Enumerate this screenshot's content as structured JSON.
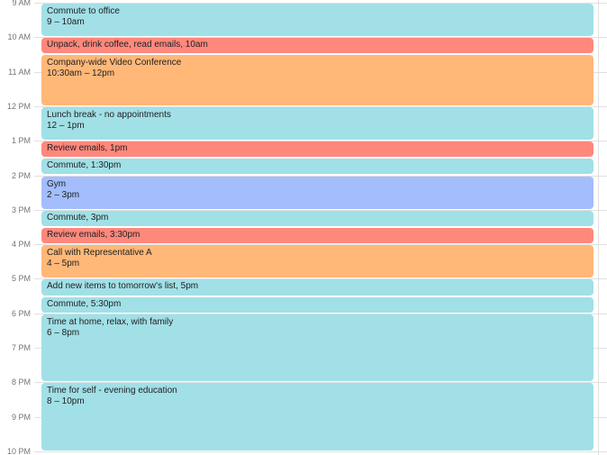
{
  "hours": [
    "9 AM",
    "10 AM",
    "11 AM",
    "12 PM",
    "1 PM",
    "2 PM",
    "3 PM",
    "4 PM",
    "5 PM",
    "6 PM",
    "7 PM",
    "8 PM",
    "9 PM",
    "10 PM"
  ],
  "colors": {
    "teal": "#a1e0e6",
    "red": "#ff887c",
    "orange": "#ffb878",
    "blue": "#a4bdfc"
  },
  "events": [
    {
      "title": "Commute to office",
      "time": "9 – 10am",
      "start": 9.0,
      "end": 10.0,
      "color": "#a1e0e6"
    },
    {
      "title": "Unpack, drink coffee, read emails",
      "time": "10am",
      "start": 10.0,
      "end": 10.5,
      "color": "#ff887c"
    },
    {
      "title": "Company-wide Video Conference",
      "time": "10:30am – 12pm",
      "start": 10.5,
      "end": 12.0,
      "color": "#ffb878"
    },
    {
      "title": "Lunch break - no appointments",
      "time": "12 – 1pm",
      "start": 12.0,
      "end": 13.0,
      "color": "#a1e0e6"
    },
    {
      "title": "Review emails",
      "time": "1pm",
      "start": 13.0,
      "end": 13.5,
      "color": "#ff887c"
    },
    {
      "title": "Commute",
      "time": "1:30pm",
      "start": 13.5,
      "end": 14.0,
      "color": "#a1e0e6"
    },
    {
      "title": "Gym",
      "time": "2 – 3pm",
      "start": 14.0,
      "end": 15.0,
      "color": "#a4bdfc"
    },
    {
      "title": "Commute",
      "time": "3pm",
      "start": 15.0,
      "end": 15.5,
      "color": "#a1e0e6"
    },
    {
      "title": "Review emails",
      "time": "3:30pm",
      "start": 15.5,
      "end": 16.0,
      "color": "#ff887c"
    },
    {
      "title": "Call with Representative A",
      "time": "4 – 5pm",
      "start": 16.0,
      "end": 17.0,
      "color": "#ffb878"
    },
    {
      "title": "Add new items to tomorrow's list",
      "time": "5pm",
      "start": 17.0,
      "end": 17.5,
      "color": "#a1e0e6"
    },
    {
      "title": "Commute",
      "time": "5:30pm",
      "start": 17.5,
      "end": 18.0,
      "color": "#a1e0e6"
    },
    {
      "title": "Time at home, relax, with family",
      "time": "6 – 8pm",
      "start": 18.0,
      "end": 20.0,
      "color": "#a1e0e6"
    },
    {
      "title": "Time for self - evening education",
      "time": "8 – 10pm",
      "start": 20.0,
      "end": 22.0,
      "color": "#a1e0e6"
    }
  ]
}
